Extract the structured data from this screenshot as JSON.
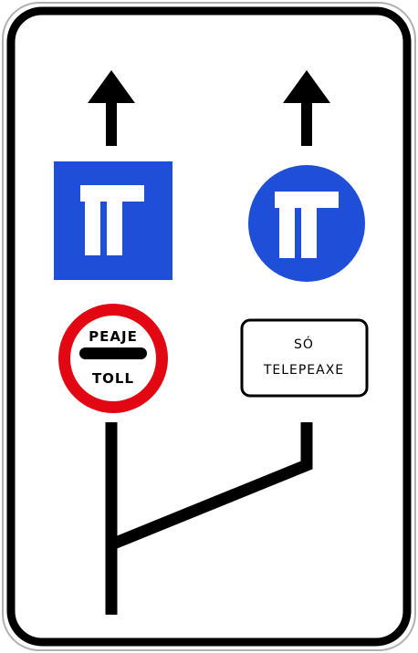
{
  "sign": {
    "colors": {
      "background": "#ffffff",
      "border": "#000000",
      "blue": "#1f4fd8",
      "red": "#e30613",
      "symbol": "#ffffff"
    },
    "left_lane": {
      "arrow": "up-arrow-icon",
      "panel": "blue-square-toll-panel",
      "restriction": {
        "top_text": "PEAJE",
        "bottom_text": "TOLL"
      }
    },
    "right_lane": {
      "arrow": "up-arrow-icon",
      "panel": "blue-circle-toll-panel",
      "plate": {
        "line1": "SÓ",
        "line2": "TELEPEAXE"
      }
    }
  }
}
